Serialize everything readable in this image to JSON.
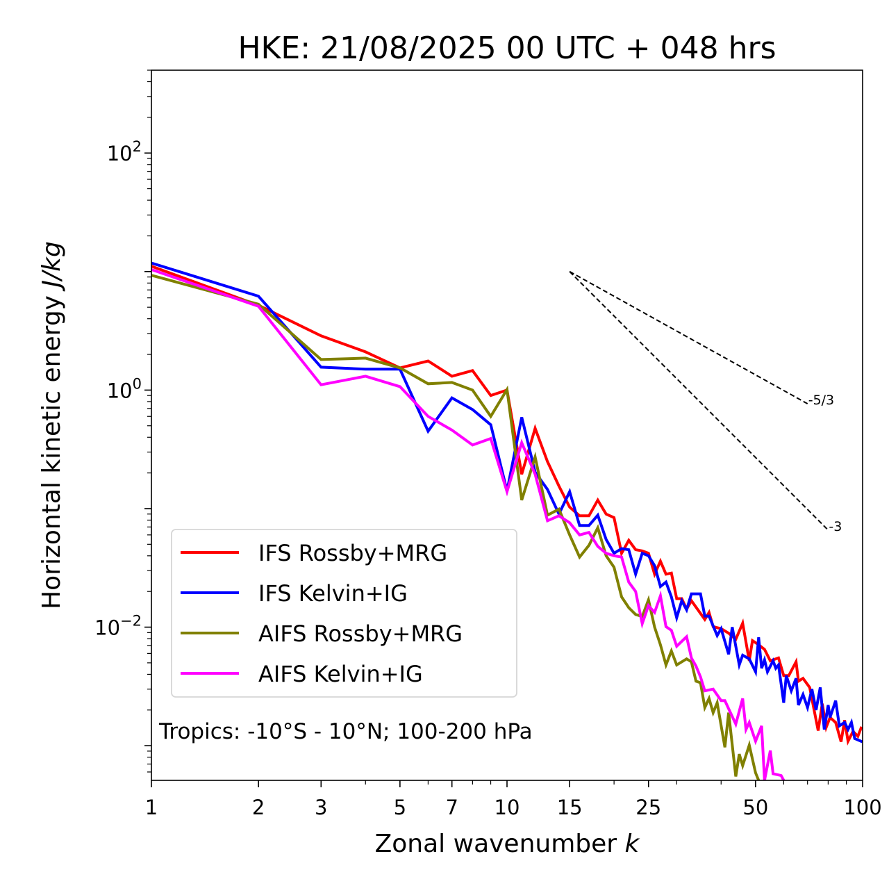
{
  "chart_data": {
    "type": "line",
    "title": "HKE: 21/08/2025 00 UTC + 048 hrs",
    "xlabel": "Zonal wavenumber",
    "xlabel_var": "k",
    "ylabel": "Horizontal kinetic energy",
    "ylabel_unit": "J/kg",
    "xscale": "log",
    "yscale": "log",
    "xlim": [
      1,
      100
    ],
    "ylim": [
      0.00051,
      500
    ],
    "grid": false,
    "legend_position": "lower-left",
    "x_ticks": [
      {
        "value": 1,
        "label": "1"
      },
      {
        "value": 2,
        "label": "2"
      },
      {
        "value": 3,
        "label": "3"
      },
      {
        "value": 5,
        "label": "5"
      },
      {
        "value": 7,
        "label": "7"
      },
      {
        "value": 10,
        "label": "10"
      },
      {
        "value": 15,
        "label": "15"
      },
      {
        "value": 25,
        "label": "25"
      },
      {
        "value": 50,
        "label": "50"
      },
      {
        "value": 100,
        "label": "100"
      }
    ],
    "x_minor_ticks": [
      4,
      6,
      8,
      9,
      20,
      30,
      40,
      60,
      70,
      80,
      90
    ],
    "y_ticks": [
      {
        "value": 100,
        "base": "10",
        "exp": "2"
      },
      {
        "value": 1,
        "base": "10",
        "exp": "0"
      },
      {
        "value": 0.01,
        "base": "10",
        "exp": "−2"
      }
    ],
    "annotation": "Tropics: -10°S - 10°N; 100-200 hPa",
    "reference_lines": [
      {
        "label": "-5/3",
        "slope": -1.6667,
        "k_start": 15,
        "E_start": 10,
        "k_end": 70
      },
      {
        "label": "-3",
        "slope": -3,
        "k_start": 15,
        "E_start": 10,
        "k_end": 80
      }
    ],
    "series": [
      {
        "name": "IFS Rossby+MRG",
        "color": "#ff0000",
        "points": [
          [
            1,
            11.1
          ],
          [
            2,
            5.2
          ],
          [
            3,
            2.87
          ],
          [
            4,
            2.1
          ],
          [
            5,
            1.54
          ],
          [
            6,
            1.76
          ],
          [
            7,
            1.31
          ],
          [
            8,
            1.46
          ],
          [
            9,
            0.9
          ],
          [
            10,
            1.0
          ],
          [
            11,
            0.195
          ],
          [
            12,
            0.476
          ],
          [
            13,
            0.249
          ],
          [
            14,
            0.155
          ],
          [
            15,
            0.103
          ],
          [
            16,
            0.087
          ],
          [
            17,
            0.087
          ],
          [
            18,
            0.118
          ],
          [
            19,
            0.09
          ],
          [
            20,
            0.084
          ],
          [
            21,
            0.042
          ],
          [
            22,
            0.054
          ],
          [
            23,
            0.045
          ],
          [
            24,
            0.044
          ],
          [
            25,
            0.042
          ],
          [
            26,
            0.028
          ],
          [
            27,
            0.036
          ],
          [
            28,
            0.028
          ],
          [
            29,
            0.0286
          ],
          [
            30,
            0.0174
          ],
          [
            31,
            0.0174
          ],
          [
            32,
            0.0142
          ],
          [
            33,
            0.0167
          ],
          [
            36,
            0.0116
          ],
          [
            37,
            0.0133
          ],
          [
            38,
            0.0101
          ],
          [
            40,
            0.0097
          ],
          [
            42,
            0.0089
          ],
          [
            44,
            0.0079
          ],
          [
            46,
            0.0108
          ],
          [
            48,
            0.0052
          ],
          [
            49,
            0.0077
          ],
          [
            51,
            0.0071
          ],
          [
            53,
            0.0065
          ],
          [
            55,
            0.0052
          ],
          [
            58,
            0.0055
          ],
          [
            60,
            0.0039
          ],
          [
            62,
            0.0039
          ],
          [
            65,
            0.0051
          ],
          [
            66,
            0.0035
          ],
          [
            68,
            0.0037
          ],
          [
            71,
            0.0031
          ],
          [
            75,
            0.00134
          ],
          [
            77,
            0.00226
          ],
          [
            79,
            0.00143
          ],
          [
            81,
            0.00173
          ],
          [
            84,
            0.00157
          ],
          [
            87,
            0.00108
          ],
          [
            89,
            0.00164
          ],
          [
            91,
            0.00109
          ],
          [
            94,
            0.00132
          ],
          [
            97,
            0.0012
          ],
          [
            99,
            0.00141
          ]
        ]
      },
      {
        "name": "IFS Kelvin+IG",
        "color": "#0000ff",
        "points": [
          [
            1,
            11.8
          ],
          [
            2,
            6.2
          ],
          [
            3,
            1.56
          ],
          [
            4,
            1.5
          ],
          [
            5,
            1.5
          ],
          [
            6,
            0.45
          ],
          [
            7,
            0.86
          ],
          [
            8,
            0.685
          ],
          [
            9,
            0.51
          ],
          [
            10,
            0.141
          ],
          [
            11,
            0.59
          ],
          [
            12,
            0.203
          ],
          [
            13,
            0.145
          ],
          [
            14,
            0.09
          ],
          [
            15,
            0.139
          ],
          [
            16,
            0.072
          ],
          [
            17,
            0.072
          ],
          [
            18,
            0.088
          ],
          [
            19,
            0.055
          ],
          [
            20,
            0.042
          ],
          [
            21,
            0.046
          ],
          [
            22,
            0.045
          ],
          [
            23,
            0.028
          ],
          [
            24,
            0.042
          ],
          [
            25,
            0.04
          ],
          [
            26,
            0.033
          ],
          [
            27,
            0.022
          ],
          [
            28,
            0.024
          ],
          [
            29,
            0.018
          ],
          [
            30,
            0.012
          ],
          [
            31,
            0.0167
          ],
          [
            32,
            0.014
          ],
          [
            33,
            0.0191
          ],
          [
            35,
            0.0191
          ],
          [
            36,
            0.0124
          ],
          [
            37,
            0.0124
          ],
          [
            39,
            0.0085
          ],
          [
            40,
            0.0097
          ],
          [
            42,
            0.0059
          ],
          [
            43,
            0.01
          ],
          [
            45,
            0.0048
          ],
          [
            46,
            0.0058
          ],
          [
            48,
            0.0054
          ],
          [
            50,
            0.0042
          ],
          [
            51,
            0.0082
          ],
          [
            52,
            0.0045
          ],
          [
            53,
            0.0053
          ],
          [
            54,
            0.0042
          ],
          [
            56,
            0.0052
          ],
          [
            57,
            0.0045
          ],
          [
            58,
            0.0048
          ],
          [
            60,
            0.0023
          ],
          [
            61,
            0.0039
          ],
          [
            63,
            0.0029
          ],
          [
            65,
            0.0037
          ],
          [
            66,
            0.0022
          ],
          [
            68,
            0.0027
          ],
          [
            70,
            0.0021
          ],
          [
            72,
            0.003
          ],
          [
            74,
            0.002
          ],
          [
            76,
            0.0031
          ],
          [
            78,
            0.00137
          ],
          [
            80,
            0.0022
          ],
          [
            81,
            0.00173
          ],
          [
            84,
            0.0024
          ],
          [
            86,
            0.00147
          ],
          [
            89,
            0.00157
          ],
          [
            91,
            0.00137
          ],
          [
            93,
            0.00157
          ],
          [
            95,
            0.00115
          ],
          [
            99,
            0.00109
          ]
        ]
      },
      {
        "name": "AIFS Rossby+MRG",
        "color": "#808000",
        "points": [
          [
            1,
            9.3
          ],
          [
            2,
            5.3
          ],
          [
            3,
            1.81
          ],
          [
            4,
            1.86
          ],
          [
            5,
            1.54
          ],
          [
            6,
            1.13
          ],
          [
            7,
            1.16
          ],
          [
            8,
            1.0
          ],
          [
            9,
            0.6
          ],
          [
            10,
            1.01
          ],
          [
            11,
            0.118
          ],
          [
            12,
            0.273
          ],
          [
            13,
            0.088
          ],
          [
            14,
            0.099
          ],
          [
            15,
            0.06
          ],
          [
            16,
            0.039
          ],
          [
            17,
            0.049
          ],
          [
            18,
            0.069
          ],
          [
            19,
            0.04
          ],
          [
            20,
            0.032
          ],
          [
            21,
            0.018
          ],
          [
            22,
            0.0146
          ],
          [
            23,
            0.0128
          ],
          [
            24,
            0.0123
          ],
          [
            25,
            0.017
          ],
          [
            26,
            0.01
          ],
          [
            27,
            0.0071
          ],
          [
            28,
            0.0048
          ],
          [
            29,
            0.0063
          ],
          [
            30,
            0.0048
          ],
          [
            32,
            0.0054
          ],
          [
            33,
            0.0051
          ],
          [
            34,
            0.0035
          ],
          [
            35,
            0.0034
          ],
          [
            36,
            0.0021
          ],
          [
            37,
            0.0025
          ],
          [
            38,
            0.0019
          ],
          [
            39,
            0.0023
          ],
          [
            41,
            0.00097
          ],
          [
            42,
            0.0019
          ],
          [
            44,
            0.00055
          ],
          [
            45,
            0.00085
          ],
          [
            46,
            0.00068
          ],
          [
            48,
            0.00101
          ],
          [
            50,
            0.00059
          ],
          [
            51,
            0.00051
          ]
        ]
      },
      {
        "name": "AIFS Kelvin+IG",
        "color": "#ff00ff",
        "points": [
          [
            1,
            10.4
          ],
          [
            2,
            5.1
          ],
          [
            3,
            1.11
          ],
          [
            4,
            1.31
          ],
          [
            5,
            1.07
          ],
          [
            6,
            0.6
          ],
          [
            7,
            0.46
          ],
          [
            8,
            0.344
          ],
          [
            9,
            0.39
          ],
          [
            10,
            0.139
          ],
          [
            11,
            0.36
          ],
          [
            12,
            0.195
          ],
          [
            13,
            0.079
          ],
          [
            14,
            0.087
          ],
          [
            15,
            0.076
          ],
          [
            16,
            0.06
          ],
          [
            17,
            0.063
          ],
          [
            18,
            0.048
          ],
          [
            19,
            0.042
          ],
          [
            20,
            0.04
          ],
          [
            21,
            0.039
          ],
          [
            22,
            0.024
          ],
          [
            23,
            0.02
          ],
          [
            24,
            0.0107
          ],
          [
            25,
            0.0152
          ],
          [
            26,
            0.0133
          ],
          [
            27,
            0.0184
          ],
          [
            28,
            0.0101
          ],
          [
            29,
            0.0094
          ],
          [
            30,
            0.0069
          ],
          [
            32,
            0.0083
          ],
          [
            33,
            0.0055
          ],
          [
            34,
            0.0047
          ],
          [
            35,
            0.0038
          ],
          [
            36,
            0.0029
          ],
          [
            38,
            0.003
          ],
          [
            40,
            0.0024
          ],
          [
            41,
            0.0024
          ],
          [
            44,
            0.00152
          ],
          [
            46,
            0.0025
          ],
          [
            47,
            0.00137
          ],
          [
            48,
            0.00157
          ],
          [
            50,
            0.00109
          ],
          [
            52,
            0.00147
          ],
          [
            53,
            0.00051
          ],
          [
            55,
            0.00091
          ],
          [
            56,
            0.00058
          ],
          [
            59,
            0.00056
          ],
          [
            60,
            0.00051
          ]
        ]
      }
    ]
  }
}
